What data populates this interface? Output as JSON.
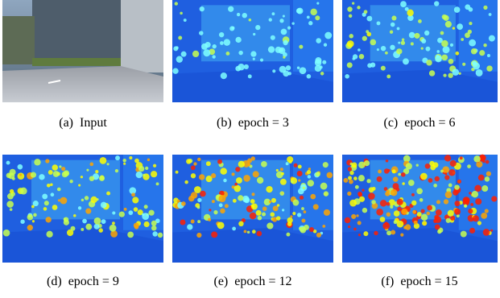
{
  "figure": {
    "panels": [
      {
        "caption": "(a)  Input"
      },
      {
        "caption": "(b)  epoch = 3"
      },
      {
        "caption": "(c)  epoch = 6"
      },
      {
        "caption": "(d)  epoch = 9"
      },
      {
        "caption": "(e)  epoch = 12"
      },
      {
        "caption": "(f)  epoch = 15"
      }
    ]
  }
}
